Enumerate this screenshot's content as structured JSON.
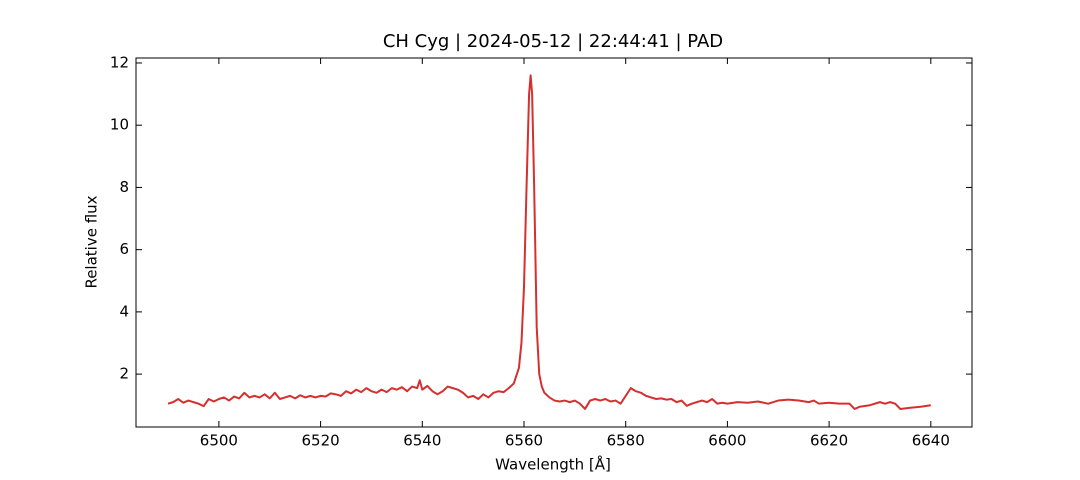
{
  "chart_data": {
    "type": "line",
    "title": "CH Cyg | 2024-05-12 | 22:44:41 | PAD",
    "x_label": "Wavelength [Å]",
    "y_label": "Relative flux",
    "xlim": [
      6483.7,
      6648.1
    ],
    "ylim": [
      0.3,
      12.16
    ],
    "xticks": [
      6500,
      6520,
      6540,
      6560,
      6580,
      6600,
      6620,
      6640
    ],
    "yticks": [
      2,
      4,
      6,
      8,
      10,
      12
    ],
    "grid": false,
    "series": [
      {
        "color": "#d62f2f",
        "x": [
          6490,
          6491,
          6492,
          6493,
          6494,
          6495,
          6496,
          6497,
          6498,
          6499,
          6500,
          6501,
          6502,
          6503,
          6504,
          6505,
          6506,
          6507,
          6508,
          6509,
          6510,
          6511,
          6512,
          6513,
          6514,
          6515,
          6516,
          6517,
          6518,
          6519,
          6520,
          6521,
          6522,
          6523,
          6524,
          6525,
          6526,
          6527,
          6528,
          6529,
          6530,
          6531,
          6532,
          6533,
          6534,
          6535,
          6536,
          6537,
          6538,
          6539,
          6539.5,
          6540,
          6541,
          6542,
          6543,
          6544,
          6545,
          6546,
          6547,
          6548,
          6549,
          6550,
          6551,
          6552,
          6553,
          6554,
          6555,
          6556,
          6557,
          6558,
          6559,
          6559.5,
          6560,
          6560.5,
          6561,
          6561.3,
          6561.6,
          6562,
          6562.5,
          6563,
          6563.5,
          6564,
          6565,
          6566,
          6567,
          6568,
          6569,
          6570,
          6571,
          6572,
          6573,
          6574,
          6575,
          6576,
          6577,
          6578,
          6579,
          6580,
          6581,
          6582,
          6583,
          6584,
          6585,
          6586,
          6587,
          6588,
          6589,
          6590,
          6591,
          6592,
          6593,
          6594,
          6595,
          6596,
          6597,
          6598,
          6599,
          6600,
          6602,
          6604,
          6606,
          6608,
          6610,
          6612,
          6614,
          6616,
          6617,
          6618,
          6620,
          6622,
          6624,
          6625,
          6626,
          6628,
          6630,
          6631,
          6632,
          6633,
          6634,
          6636,
          6638,
          6640
        ],
        "values": [
          1.05,
          1.1,
          1.2,
          1.08,
          1.15,
          1.1,
          1.05,
          0.97,
          1.2,
          1.12,
          1.2,
          1.25,
          1.15,
          1.28,
          1.22,
          1.4,
          1.25,
          1.3,
          1.25,
          1.35,
          1.22,
          1.4,
          1.2,
          1.25,
          1.3,
          1.22,
          1.32,
          1.25,
          1.3,
          1.25,
          1.3,
          1.28,
          1.38,
          1.35,
          1.3,
          1.45,
          1.38,
          1.5,
          1.42,
          1.55,
          1.45,
          1.4,
          1.5,
          1.42,
          1.55,
          1.5,
          1.58,
          1.45,
          1.6,
          1.55,
          1.8,
          1.5,
          1.62,
          1.45,
          1.35,
          1.45,
          1.6,
          1.55,
          1.5,
          1.4,
          1.25,
          1.3,
          1.2,
          1.35,
          1.25,
          1.4,
          1.45,
          1.42,
          1.55,
          1.7,
          2.2,
          3.0,
          4.8,
          8.0,
          11.0,
          11.6,
          11.0,
          8.0,
          3.5,
          2.0,
          1.6,
          1.4,
          1.25,
          1.15,
          1.12,
          1.15,
          1.1,
          1.15,
          1.05,
          0.88,
          1.15,
          1.2,
          1.15,
          1.2,
          1.12,
          1.15,
          1.05,
          1.3,
          1.55,
          1.45,
          1.4,
          1.3,
          1.25,
          1.2,
          1.22,
          1.18,
          1.2,
          1.1,
          1.15,
          0.98,
          1.05,
          1.1,
          1.15,
          1.1,
          1.2,
          1.05,
          1.08,
          1.05,
          1.1,
          1.08,
          1.12,
          1.05,
          1.15,
          1.18,
          1.15,
          1.1,
          1.15,
          1.05,
          1.08,
          1.05,
          1.05,
          0.88,
          0.95,
          1.0,
          1.1,
          1.05,
          1.1,
          1.05,
          0.88,
          0.92,
          0.95,
          1.0
        ]
      }
    ]
  }
}
